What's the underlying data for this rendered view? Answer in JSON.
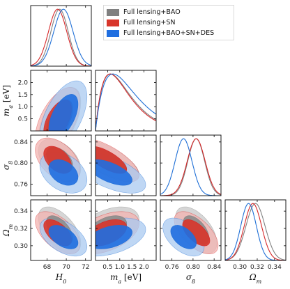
{
  "chart_data": {
    "type": "triangle-corner",
    "parameters": [
      {
        "key": "H0",
        "label": "H",
        "sub": "0",
        "range": [
          66.3,
          72.6
        ],
        "ticks": [
          68,
          70,
          72
        ],
        "tick_labels": [
          "68",
          "70",
          "72"
        ]
      },
      {
        "key": "ma",
        "label": "m",
        "sub": "a",
        "unit": "[eV]",
        "range": [
          0,
          2.5
        ],
        "ticks": [
          0.5,
          1.0,
          1.5,
          2.0
        ],
        "tick_labels": [
          "0.5",
          "1.0",
          "1.5",
          "2.0"
        ],
        "yticks": [
          0.5,
          1.0,
          1.5,
          2.0
        ],
        "ytick_labels": [
          "0.5",
          "1.0",
          "1.5",
          "2.0"
        ]
      },
      {
        "key": "s8",
        "label": "σ",
        "sub": "8",
        "range": [
          0.738,
          0.853
        ],
        "ticks": [
          0.76,
          0.8,
          0.84
        ],
        "tick_labels": [
          "0.76",
          "0.80",
          "0.84"
        ],
        "yticks": [
          0.76,
          0.8,
          0.84
        ],
        "ytick_labels": [
          "0.76",
          "0.80",
          "0.84"
        ]
      },
      {
        "key": "Om",
        "label": "Ω",
        "sub": "m",
        "range": [
          0.283,
          0.353
        ],
        "ticks": [
          0.3,
          0.32,
          0.34
        ],
        "tick_labels": [
          "0.30",
          "0.32",
          "0.34"
        ],
        "yticks": [
          0.3,
          0.32,
          0.34
        ],
        "ytick_labels": [
          "0.30",
          "0.32",
          "0.34"
        ]
      }
    ],
    "legend": {
      "placement": "top-right",
      "entries": [
        "Full lensing+BAO",
        "Full lensing+SN",
        "Full lensing+BAO+SN+DES"
      ]
    },
    "series": [
      {
        "name": "Full lensing+BAO",
        "color": "#808080",
        "fill_outer": "#c8c8c8",
        "fill_inner": "#8c8c8c",
        "mean": {
          "H0": 69.3,
          "ma": 0.45,
          "s8": 0.806,
          "Om": 0.318
        },
        "sigma": {
          "H0": 0.9,
          "ma": 0.55,
          "s8": 0.016,
          "Om": 0.011
        },
        "corr": {
          "H0-ma": 0.55,
          "H0-s8": -0.45,
          "H0-Om": -0.55,
          "ma-s8": -0.7,
          "ma-Om": 0.45,
          "s8-Om": -0.55
        },
        "ma_scale": 0.62
      },
      {
        "name": "Full lensing+SN",
        "color": "#d62728",
        "fill_outer": "#f3b3b0",
        "fill_inner": "#d8352a",
        "mean": {
          "H0": 69.1,
          "ma": 0.45,
          "s8": 0.806,
          "Om": 0.315
        },
        "sigma": {
          "H0": 0.95,
          "ma": 0.55,
          "s8": 0.017,
          "Om": 0.01
        },
        "corr": {
          "H0-ma": 0.55,
          "H0-s8": -0.45,
          "H0-Om": -0.55,
          "ma-s8": -0.7,
          "ma-Om": 0.45,
          "s8-Om": -0.6
        },
        "ma_scale": 0.6
      },
      {
        "name": "Full lensing+BAO+SN+DES",
        "color": "#1f6fd6",
        "fill_outer": "#a9c9f0",
        "fill_inner": "#1f6ee0",
        "mean": {
          "H0": 69.7,
          "ma": 0.6,
          "s8": 0.782,
          "Om": 0.31
        },
        "sigma": {
          "H0": 1.0,
          "ma": 0.6,
          "s8": 0.016,
          "Om": 0.009
        },
        "corr": {
          "H0-ma": 0.55,
          "H0-s8": -0.35,
          "H0-Om": -0.5,
          "ma-s8": -0.6,
          "ma-Om": 0.4,
          "s8-Om": -0.5
        },
        "ma_scale": 0.72
      }
    ]
  }
}
